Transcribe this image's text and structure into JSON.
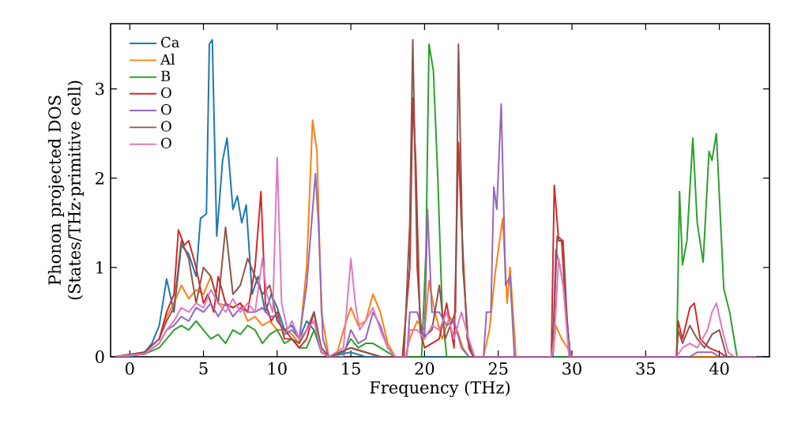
{
  "chart_data": {
    "type": "line",
    "xlabel": "Frequency (THz)",
    "ylabel": "Phonon projected DOS\n(States/THz·primitive cell)",
    "xlim": [
      -1.3,
      43.4
    ],
    "ylim": [
      0,
      3.73
    ],
    "xticks": [
      0,
      5,
      10,
      15,
      20,
      25,
      30,
      35,
      40
    ],
    "yticks": [
      0,
      1,
      2,
      3
    ],
    "grid": false,
    "legend": "top left",
    "series": [
      {
        "name": "Ca",
        "color": "#1f77b4",
        "x": [
          -1,
          0,
          1,
          1.5,
          2,
          2.5,
          3,
          3.5,
          4,
          4.5,
          4.8,
          5.2,
          5.4,
          5.6,
          5.9,
          6.3,
          6.6,
          7,
          7.3,
          7.6,
          7.9,
          8.3,
          8.7,
          9.2,
          9.6,
          10,
          10.5,
          11,
          11.5,
          12,
          12.5,
          13,
          13.5,
          15,
          16,
          42.5
        ],
        "values": [
          0,
          0,
          0.05,
          0.15,
          0.35,
          0.87,
          0.5,
          1.25,
          1.15,
          0.9,
          1.55,
          1.6,
          3.5,
          3.55,
          1.35,
          2.2,
          2.45,
          1.65,
          1.8,
          1.5,
          1.7,
          0.7,
          0.9,
          0.5,
          0.7,
          0.55,
          0.3,
          0.35,
          0.2,
          0.4,
          0.3,
          0.05,
          0,
          0.05,
          0,
          0
        ]
      },
      {
        "name": "Al",
        "color": "#ff7f0e",
        "x": [
          2,
          2.5,
          3,
          3.5,
          4,
          4.5,
          5,
          5.5,
          6,
          7,
          7.5,
          8,
          8.5,
          9,
          9.5,
          10,
          10.5,
          11,
          11.5,
          12,
          12.4,
          12.7,
          13,
          13.5,
          14,
          14.5,
          15,
          15.5,
          16,
          16.5,
          17,
          17.5,
          18,
          18.7,
          19,
          19.5,
          20,
          20.3,
          20.7,
          21.2,
          21.7,
          22.2,
          22.6,
          23,
          24,
          24.4,
          24.8,
          25.3,
          25.6,
          25.8,
          26.2,
          28.7,
          28.9,
          29.3,
          29.7,
          30,
          42.5
        ],
        "values": [
          0.2,
          0.45,
          0.6,
          0.8,
          0.65,
          0.75,
          0.7,
          0.9,
          0.6,
          0.55,
          0.6,
          0.4,
          0.45,
          0.35,
          0.4,
          0.3,
          0.3,
          0.25,
          0.15,
          1.0,
          2.65,
          2.3,
          0.5,
          0,
          0,
          0.3,
          0.55,
          0.35,
          0.4,
          0.7,
          0.5,
          0.15,
          0,
          0,
          0.2,
          0.4,
          0.3,
          0.85,
          0.5,
          0.2,
          0.45,
          0.3,
          0.1,
          0,
          0,
          0.3,
          0.95,
          1.55,
          0.6,
          1.0,
          0,
          0,
          0.35,
          0.2,
          0.1,
          0,
          0
        ]
      },
      {
        "name": "B",
        "color": "#2ca02c",
        "x": [
          -1,
          1,
          2,
          2.5,
          3,
          3.5,
          4,
          4.5,
          5,
          5.5,
          6,
          6.5,
          7,
          7.5,
          8,
          8.5,
          9,
          9.5,
          10,
          10.5,
          11,
          11.5,
          12,
          12.5,
          13,
          13.5,
          14.5,
          15,
          15.5,
          16,
          16.5,
          17,
          17.5,
          18,
          19.8,
          20.1,
          20.3,
          20.6,
          20.9,
          21.2,
          21.5,
          37.1,
          37.3,
          37.5,
          37.8,
          38.2,
          38.5,
          38.9,
          39.3,
          39.5,
          39.8,
          40.3,
          40.7,
          41.2,
          42.5
        ],
        "values": [
          0,
          0.03,
          0.1,
          0.2,
          0.3,
          0.35,
          0.3,
          0.4,
          0.3,
          0.2,
          0.25,
          0.15,
          0.3,
          0.25,
          0.35,
          0.3,
          0.15,
          0.25,
          0.3,
          0.15,
          0.2,
          0.1,
          0.1,
          0.3,
          0.1,
          0,
          0.05,
          0.2,
          0.1,
          0.15,
          0.15,
          0.1,
          0.05,
          0,
          0,
          1.2,
          3.5,
          3.2,
          2.0,
          0.5,
          0,
          0,
          1.85,
          1.03,
          1.3,
          2.45,
          1.5,
          1.06,
          2.3,
          2.2,
          2.5,
          0.76,
          0.5,
          0,
          0
        ]
      },
      {
        "name": "O",
        "color": "#d62728",
        "x": [
          -1,
          1,
          2,
          2.5,
          3,
          3.3,
          3.7,
          4,
          4.5,
          5,
          5.3,
          5.7,
          6,
          6.5,
          7,
          7.5,
          8,
          8.5,
          8.9,
          9.2,
          9.6,
          10,
          10.5,
          11,
          11.5,
          12,
          12.5,
          13,
          13.5,
          15,
          16,
          17,
          18.5,
          19,
          19.2,
          19.4,
          19.7,
          20,
          21,
          21.5,
          22,
          22.3,
          22.5,
          22.9,
          23.3,
          28.6,
          28.8,
          29.1,
          29.3,
          29.6,
          29.9,
          37.1,
          37.2,
          37.5,
          38,
          38.3,
          38.7,
          39.3,
          40,
          40.5,
          42.5
        ],
        "values": [
          0,
          0.05,
          0.2,
          0.5,
          0.7,
          1.42,
          1.25,
          1.3,
          1.0,
          0.6,
          0.7,
          0.5,
          0.9,
          0.6,
          0.55,
          0.6,
          0.5,
          1.0,
          1.85,
          0.6,
          0.4,
          0.5,
          0.2,
          0.2,
          0.1,
          0.2,
          0.5,
          0.05,
          0,
          0.1,
          0.05,
          0,
          0,
          1.0,
          2.9,
          2.2,
          0.3,
          0.1,
          0.2,
          0.6,
          0.1,
          2.4,
          1.5,
          0.2,
          0,
          0,
          1.92,
          1.3,
          1.3,
          0.5,
          0,
          0,
          0.4,
          0.2,
          0.55,
          0.6,
          0.2,
          0.1,
          0.05,
          0,
          0
        ]
      },
      {
        "name": "O",
        "color": "#9467bd",
        "x": [
          -1,
          1,
          2,
          2.5,
          3,
          3.5,
          4,
          4.5,
          5,
          5.5,
          6,
          6.5,
          7,
          7.5,
          8,
          8.5,
          9,
          9.5,
          10,
          10.5,
          11,
          11.5,
          12,
          12.6,
          12.8,
          13.1,
          13.5,
          14.5,
          15,
          15.5,
          16,
          16.5,
          17,
          17.5,
          18,
          18.8,
          19,
          19.5,
          20,
          20.2,
          20.5,
          21,
          21.5,
          22,
          22.5,
          23,
          24,
          24.2,
          24.5,
          24.7,
          24.9,
          25.2,
          25.5,
          25.8,
          26.1,
          28.7,
          28.9,
          29.2,
          29.5,
          29.9,
          38,
          38.5,
          39.5,
          40,
          42.5
        ],
        "values": [
          0,
          0.03,
          0.15,
          0.3,
          0.35,
          0.45,
          0.4,
          0.55,
          0.5,
          0.6,
          0.45,
          0.6,
          0.45,
          0.55,
          0.5,
          0.5,
          0.55,
          0.45,
          0.45,
          0.25,
          0.3,
          0.2,
          0.8,
          2.05,
          1.5,
          0.2,
          0,
          0,
          0.3,
          0.15,
          0.2,
          0.5,
          0.35,
          0.1,
          0,
          0,
          0.5,
          0.5,
          0.2,
          1.65,
          0.5,
          0.5,
          0.35,
          0.4,
          0.1,
          0,
          0,
          0.5,
          0.5,
          1.9,
          1.65,
          2.83,
          0.8,
          0.9,
          0,
          0,
          1.2,
          1.0,
          0.7,
          0,
          0,
          0.05,
          0.05,
          0,
          0
        ]
      },
      {
        "name": "O",
        "color": "#8c564b",
        "x": [
          -1,
          1,
          2,
          2.5,
          3,
          3.5,
          4,
          4.5,
          5,
          5.5,
          6,
          6.5,
          7,
          7.5,
          8,
          8.5,
          9,
          9.5,
          10,
          10.5,
          11,
          11.5,
          12,
          12.5,
          13,
          13.5,
          15,
          16,
          17,
          18.6,
          19,
          19.2,
          19.5,
          19.8,
          20.5,
          21,
          21.4,
          22.1,
          22.3,
          22.6,
          23,
          23.3,
          28.6,
          28.8,
          29,
          29.4,
          29.8,
          37.1,
          37.2,
          37.5,
          38,
          38.5,
          39,
          39.5,
          40,
          40.5,
          42.5
        ],
        "values": [
          0,
          0.05,
          0.2,
          0.4,
          0.55,
          1.3,
          1.1,
          0.6,
          1.0,
          0.9,
          0.6,
          1.45,
          0.7,
          0.8,
          1.1,
          0.9,
          0.7,
          0.8,
          0.4,
          0.3,
          0.2,
          0.15,
          0.3,
          0.5,
          0.1,
          0,
          0.1,
          0.05,
          0,
          0,
          1.5,
          3.55,
          1.0,
          0.2,
          0.3,
          0.8,
          0.2,
          0.5,
          3.5,
          1.0,
          0.1,
          0,
          0,
          0.5,
          1.35,
          1.3,
          0,
          0,
          0.3,
          0.15,
          0.35,
          0.2,
          0.1,
          0.25,
          0.3,
          0,
          0
        ]
      },
      {
        "name": "O",
        "color": "#e377c2",
        "x": [
          -1,
          1,
          2,
          2.5,
          3,
          3.5,
          4,
          4.5,
          5,
          5.5,
          6,
          6.5,
          7,
          7.5,
          8,
          8.5,
          9,
          9.3,
          9.7,
          10,
          10.3,
          10.7,
          11,
          11.5,
          12,
          12.5,
          13,
          13.5,
          14.5,
          15,
          15.3,
          15.6,
          16,
          16.5,
          17,
          17.5,
          18,
          18.8,
          19,
          19.5,
          20,
          20.5,
          21,
          21.5,
          22,
          22.5,
          23,
          23.4,
          28.6,
          28.8,
          29.1,
          29.4,
          29.8,
          37.1,
          37.5,
          38,
          38.5,
          39.2,
          39.5,
          39.8,
          40.2,
          40.6,
          41,
          42.5
        ],
        "values": [
          0,
          0.03,
          0.15,
          0.3,
          0.4,
          0.55,
          0.5,
          0.6,
          0.55,
          0.75,
          0.6,
          0.5,
          0.65,
          0.5,
          0.6,
          0.5,
          1.1,
          0.7,
          0.5,
          2.23,
          0.6,
          0.3,
          0.4,
          0.2,
          0.3,
          0.4,
          0.05,
          0,
          0.1,
          1.1,
          0.6,
          0.3,
          0.4,
          0.55,
          0.3,
          0.1,
          0,
          0,
          0.3,
          0.3,
          0.2,
          0.35,
          0.3,
          0.5,
          0.2,
          0.5,
          0.2,
          0,
          0,
          0.2,
          1.1,
          0.8,
          0,
          0,
          0.1,
          0.15,
          0.1,
          0.3,
          0.5,
          0.6,
          0.3,
          0.05,
          0,
          0
        ]
      }
    ]
  }
}
